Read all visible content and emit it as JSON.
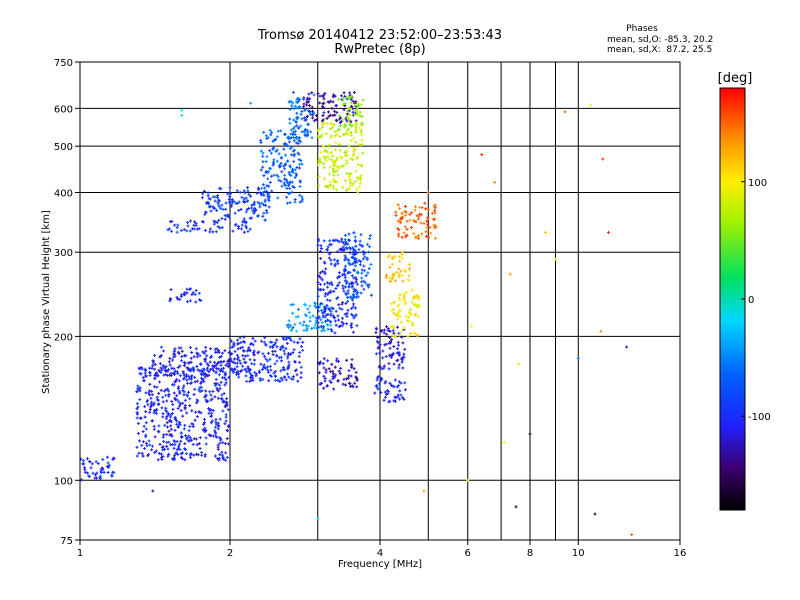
{
  "header": {
    "title": "Tromsø 20140412 23:52:00–23:53:43",
    "subtitle": "RwPretec (8p)"
  },
  "stats": {
    "heading": "Phases",
    "line1": "mean, sd,O: -85.3, 20.2",
    "line2": "mean, sd,X:  87.2, 25.5"
  },
  "colorbar": {
    "label": "[deg]",
    "range": [
      -180,
      180
    ],
    "ticks": [
      "100",
      "0",
      "-100"
    ],
    "tick_values": [
      100,
      0,
      -100
    ]
  },
  "chart_data": {
    "type": "scatter",
    "title": "Tromsø 20140412 23:52:00–23:53:43",
    "subtitle": "RwPretec (8p)",
    "xlabel": "Frequency [MHz]",
    "ylabel": "Stationary phase Virtual Height [km]",
    "x_scale": "log",
    "y_scale": "log",
    "xlim": [
      1,
      16
    ],
    "ylim": [
      75,
      750
    ],
    "x_ticks": [
      1,
      2,
      4,
      6,
      8,
      10,
      16
    ],
    "x_tick_labels": [
      "1",
      "2",
      "4",
      "6",
      "8",
      "10",
      "16"
    ],
    "x_minor_ticks": [
      3,
      5,
      7,
      9
    ],
    "y_ticks": [
      75,
      100,
      200,
      300,
      400,
      500,
      600,
      750
    ],
    "y_tick_labels": [
      "75",
      "100",
      "200",
      "300",
      "400",
      "500",
      "600",
      "750"
    ],
    "grid": true,
    "color_dimension": "phase [deg]",
    "clusters": [
      {
        "x": [
          1.0,
          1.18
        ],
        "y": [
          100,
          112
        ],
        "phase": -100
      },
      {
        "x": [
          1.3,
          2.0
        ],
        "y": [
          110,
          175
        ],
        "phase": -105
      },
      {
        "x": [
          1.4,
          2.2
        ],
        "y": [
          165,
          190
        ],
        "phase": -110
      },
      {
        "x": [
          1.5,
          1.75
        ],
        "y": [
          235,
          252
        ],
        "phase": -105
      },
      {
        "x": [
          1.5,
          2.2
        ],
        "y": [
          330,
          350
        ],
        "phase": -95
      },
      {
        "x": [
          1.75,
          2.4
        ],
        "y": [
          350,
          410
        ],
        "phase": -90
      },
      {
        "x": [
          2.0,
          2.8
        ],
        "y": [
          160,
          200
        ],
        "phase": -100
      },
      {
        "x": [
          2.3,
          2.8
        ],
        "y": [
          380,
          540
        ],
        "phase": -70
      },
      {
        "x": [
          2.6,
          2.95
        ],
        "y": [
          520,
          650
        ],
        "phase": -60
      },
      {
        "x": [
          2.6,
          3.2
        ],
        "y": [
          205,
          235
        ],
        "phase": -40
      },
      {
        "x": [
          2.8,
          3.6
        ],
        "y": [
          560,
          650
        ],
        "phase": -130
      },
      {
        "x": [
          3.0,
          3.7
        ],
        "y": [
          400,
          560
        ],
        "phase": 80
      },
      {
        "x": [
          3.3,
          3.7
        ],
        "y": [
          540,
          640
        ],
        "phase": 60
      },
      {
        "x": [
          3.0,
          3.6
        ],
        "y": [
          200,
          320
        ],
        "phase": -100
      },
      {
        "x": [
          3.4,
          3.85
        ],
        "y": [
          240,
          330
        ],
        "phase": -75
      },
      {
        "x": [
          3.0,
          3.6
        ],
        "y": [
          155,
          180
        ],
        "phase": -125
      },
      {
        "x": [
          3.9,
          4.5
        ],
        "y": [
          170,
          210
        ],
        "phase": -115
      },
      {
        "x": [
          3.9,
          4.5
        ],
        "y": [
          145,
          165
        ],
        "phase": -105
      },
      {
        "x": [
          4.2,
          4.8
        ],
        "y": [
          200,
          250
        ],
        "phase": 100
      },
      {
        "x": [
          4.1,
          4.6
        ],
        "y": [
          260,
          300
        ],
        "phase": 120
      },
      {
        "x": [
          4.3,
          5.2
        ],
        "y": [
          320,
          380
        ],
        "phase": 150
      }
    ],
    "scattered_points": [
      {
        "x": 1.6,
        "y": 595,
        "phase": -20
      },
      {
        "x": 1.7,
        "y": 155,
        "phase": -100
      },
      {
        "x": 1.6,
        "y": 580,
        "phase": -10
      },
      {
        "x": 2.2,
        "y": 615,
        "phase": -40
      },
      {
        "x": 5.0,
        "y": 400,
        "phase": 150
      },
      {
        "x": 6.4,
        "y": 480,
        "phase": 170
      },
      {
        "x": 6.8,
        "y": 420,
        "phase": 140
      },
      {
        "x": 7.3,
        "y": 270,
        "phase": 130
      },
      {
        "x": 8.6,
        "y": 330,
        "phase": 120
      },
      {
        "x": 9.0,
        "y": 290,
        "phase": 110
      },
      {
        "x": 9.4,
        "y": 590,
        "phase": 150
      },
      {
        "x": 10.6,
        "y": 610,
        "phase": 90
      },
      {
        "x": 11.2,
        "y": 470,
        "phase": 160
      },
      {
        "x": 11.5,
        "y": 330,
        "phase": 170
      },
      {
        "x": 10.0,
        "y": 180,
        "phase": -60
      },
      {
        "x": 12.5,
        "y": 190,
        "phase": -110
      },
      {
        "x": 8.0,
        "y": 125,
        "phase": -170
      },
      {
        "x": 7.5,
        "y": 88,
        "phase": -160
      },
      {
        "x": 10.8,
        "y": 85,
        "phase": -165
      },
      {
        "x": 12.8,
        "y": 77,
        "phase": 150
      },
      {
        "x": 6.0,
        "y": 100,
        "phase": 100
      },
      {
        "x": 4.9,
        "y": 95,
        "phase": 130
      },
      {
        "x": 3.0,
        "y": 83,
        "phase": -10
      },
      {
        "x": 1.4,
        "y": 95,
        "phase": -130
      },
      {
        "x": 7.1,
        "y": 120,
        "phase": 100
      },
      {
        "x": 7.6,
        "y": 175,
        "phase": 90
      },
      {
        "x": 6.1,
        "y": 210,
        "phase": 100
      },
      {
        "x": 11.1,
        "y": 205,
        "phase": 140
      }
    ]
  }
}
